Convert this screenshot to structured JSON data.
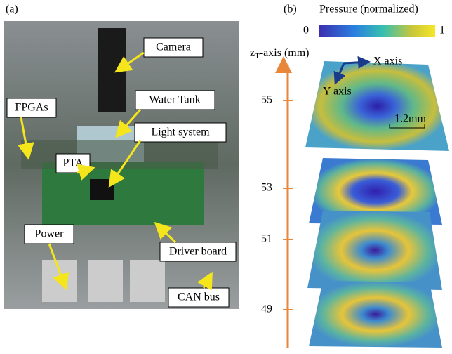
{
  "panel_a": {
    "label": "(a)",
    "callouts": [
      "Camera",
      "Water Tank",
      "FPGAs",
      "Light system",
      "PTA",
      "Power",
      "Driver board",
      "CAN bus"
    ]
  },
  "panel_b": {
    "label": "(b)",
    "colorbar": {
      "title": "Pressure (normalized)",
      "min": "0",
      "max": "1"
    },
    "axis": {
      "main": "z",
      "sub": "T",
      "rest": "-axis (mm)",
      "ticks": [
        55,
        53,
        51,
        49
      ]
    },
    "inset": {
      "x_axis": "X axis",
      "y_axis": "Y axis",
      "scale": "1.2mm"
    }
  }
}
